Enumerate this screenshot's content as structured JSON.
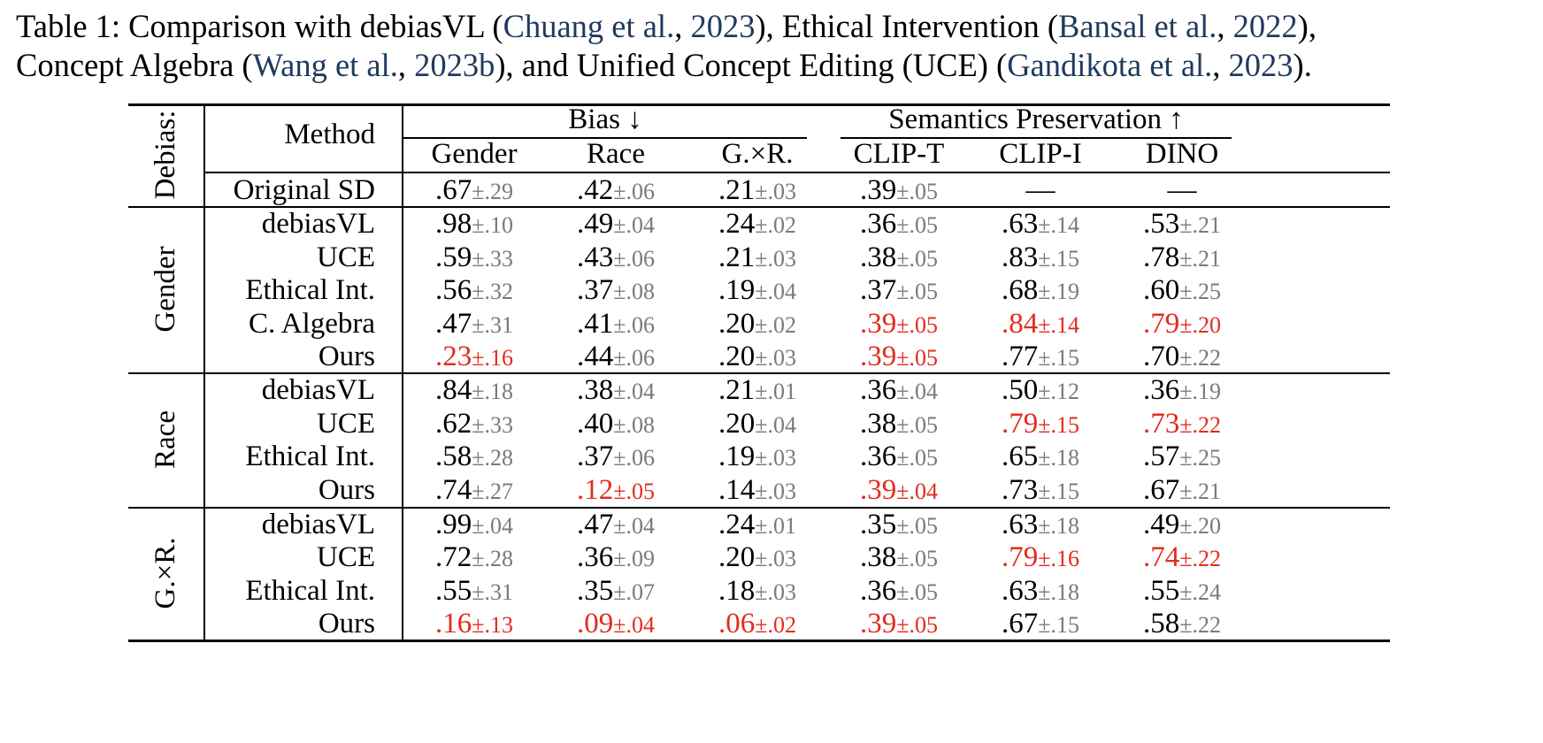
{
  "caption": {
    "p1": "Table 1: Comparison with debiasVL (",
    "c1a": "Chuang et al.",
    "s1": ", ",
    "c1b": "2023",
    "p2": "), Ethical Intervention (",
    "c2a": "Bansal et al.",
    "s2": ", ",
    "c2b": "2022",
    "p3": "),",
    "p4": "Concept Algebra (",
    "c3a": "Wang et al.",
    "s3": ", ",
    "c3b": "2023b",
    "p5": "), and Unified Concept Editing (UCE) (",
    "c4a": "Gandikota et al.",
    "s4": ", ",
    "c4b": "2023",
    "p6": ")."
  },
  "table": {
    "debias_label": "Debias:",
    "method_label": "Method",
    "bias_group": "Bias ↓",
    "sem_group": "Semantics Preservation ↑",
    "columns": [
      "Gender",
      "Race",
      "G.×R.",
      "CLIP-T",
      "CLIP-I",
      "DINO"
    ],
    "pm": "±",
    "dash": "—",
    "groups": [
      {
        "label": "Gender"
      },
      {
        "label": "Race"
      },
      {
        "label": "G.×R."
      }
    ],
    "rows": [
      {
        "method": "Original SD",
        "cells": [
          [
            ".67",
            ".29"
          ],
          [
            ".42",
            ".06"
          ],
          [
            ".21",
            ".03"
          ],
          [
            ".39",
            ".05"
          ],
          null,
          null
        ]
      },
      {
        "method": "debiasVL",
        "cells": [
          [
            ".98",
            ".10"
          ],
          [
            ".49",
            ".04"
          ],
          [
            ".24",
            ".02"
          ],
          [
            ".36",
            ".05"
          ],
          [
            ".63",
            ".14"
          ],
          [
            ".53",
            ".21"
          ]
        ]
      },
      {
        "method": "UCE",
        "cells": [
          [
            ".59",
            ".33"
          ],
          [
            ".43",
            ".06"
          ],
          [
            ".21",
            ".03"
          ],
          [
            ".38",
            ".05"
          ],
          [
            ".83",
            ".15"
          ],
          [
            ".78",
            ".21"
          ]
        ]
      },
      {
        "method": "Ethical Int.",
        "cells": [
          [
            ".56",
            ".32"
          ],
          [
            ".37",
            ".08"
          ],
          [
            ".19",
            ".04"
          ],
          [
            ".37",
            ".05"
          ],
          [
            ".68",
            ".19"
          ],
          [
            ".60",
            ".25"
          ]
        ]
      },
      {
        "method": "C. Algebra",
        "cells": [
          [
            ".47",
            ".31"
          ],
          [
            ".41",
            ".06"
          ],
          [
            ".20",
            ".02"
          ],
          [
            ".39",
            ".05",
            1
          ],
          [
            ".84",
            ".14",
            1
          ],
          [
            ".79",
            ".20",
            1
          ]
        ]
      },
      {
        "method": "Ours",
        "cells": [
          [
            ".23",
            ".16",
            1
          ],
          [
            ".44",
            ".06"
          ],
          [
            ".20",
            ".03"
          ],
          [
            ".39",
            ".05",
            1
          ],
          [
            ".77",
            ".15"
          ],
          [
            ".70",
            ".22"
          ]
        ]
      },
      {
        "method": "debiasVL",
        "cells": [
          [
            ".84",
            ".18"
          ],
          [
            ".38",
            ".04"
          ],
          [
            ".21",
            ".01"
          ],
          [
            ".36",
            ".04"
          ],
          [
            ".50",
            ".12"
          ],
          [
            ".36",
            ".19"
          ]
        ]
      },
      {
        "method": "UCE",
        "cells": [
          [
            ".62",
            ".33"
          ],
          [
            ".40",
            ".08"
          ],
          [
            ".20",
            ".04"
          ],
          [
            ".38",
            ".05"
          ],
          [
            ".79",
            ".15",
            1
          ],
          [
            ".73",
            ".22",
            1
          ]
        ]
      },
      {
        "method": "Ethical Int.",
        "cells": [
          [
            ".58",
            ".28"
          ],
          [
            ".37",
            ".06"
          ],
          [
            ".19",
            ".03"
          ],
          [
            ".36",
            ".05"
          ],
          [
            ".65",
            ".18"
          ],
          [
            ".57",
            ".25"
          ]
        ]
      },
      {
        "method": "Ours",
        "cells": [
          [
            ".74",
            ".27"
          ],
          [
            ".12",
            ".05",
            1
          ],
          [
            ".14",
            ".03"
          ],
          [
            ".39",
            ".04",
            1
          ],
          [
            ".73",
            ".15"
          ],
          [
            ".67",
            ".21"
          ]
        ]
      },
      {
        "method": "debiasVL",
        "cells": [
          [
            ".99",
            ".04"
          ],
          [
            ".47",
            ".04"
          ],
          [
            ".24",
            ".01"
          ],
          [
            ".35",
            ".05"
          ],
          [
            ".63",
            ".18"
          ],
          [
            ".49",
            ".20"
          ]
        ]
      },
      {
        "method": "UCE",
        "cells": [
          [
            ".72",
            ".28"
          ],
          [
            ".36",
            ".09"
          ],
          [
            ".20",
            ".03"
          ],
          [
            ".38",
            ".05"
          ],
          [
            ".79",
            ".16",
            1
          ],
          [
            ".74",
            ".22",
            1
          ]
        ]
      },
      {
        "method": "Ethical Int.",
        "cells": [
          [
            ".55",
            ".31"
          ],
          [
            ".35",
            ".07"
          ],
          [
            ".18",
            ".03"
          ],
          [
            ".36",
            ".05"
          ],
          [
            ".63",
            ".18"
          ],
          [
            ".55",
            ".24"
          ]
        ]
      },
      {
        "method": "Ours",
        "cells": [
          [
            ".16",
            ".13",
            1
          ],
          [
            ".09",
            ".04",
            1
          ],
          [
            ".06",
            ".02",
            1
          ],
          [
            ".39",
            ".05",
            1
          ],
          [
            ".67",
            ".15"
          ],
          [
            ".58",
            ".22"
          ]
        ]
      }
    ]
  }
}
